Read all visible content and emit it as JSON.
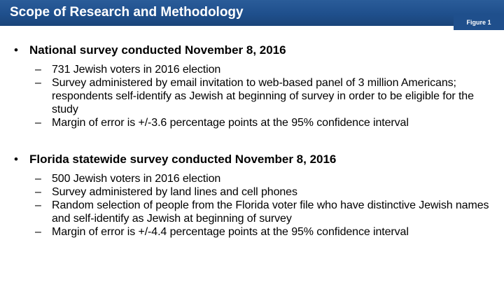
{
  "title": "Scope of Research and Methodology",
  "figure_label": "Figure 1",
  "sections": [
    {
      "bullet": "•",
      "heading": "National survey conducted November 8, 2016",
      "items": [
        "731 Jewish voters in 2016 election",
        "Survey administered by email invitation to web-based panel of 3 million Americans; respondents self-identify as Jewish at beginning of survey in order to be eligible for the study",
        "Margin of error is +/-3.6 percentage points at the 95% confidence interval"
      ]
    },
    {
      "bullet": "•",
      "heading": "Florida statewide survey conducted November 8, 2016",
      "items": [
        "500 Jewish voters in 2016 election",
        "Survey administered by land lines and cell phones",
        "Random selection of people from the Florida voter file who have distinctive Jewish names and self-identify as Jewish at beginning of survey",
        "Margin of error is +/-4.4 percentage points at the 95% confidence interval"
      ]
    }
  ],
  "dash": "–",
  "colors": {
    "title_bar": "#1f4f8c",
    "title_text": "#ffffff",
    "body_text": "#000000"
  }
}
